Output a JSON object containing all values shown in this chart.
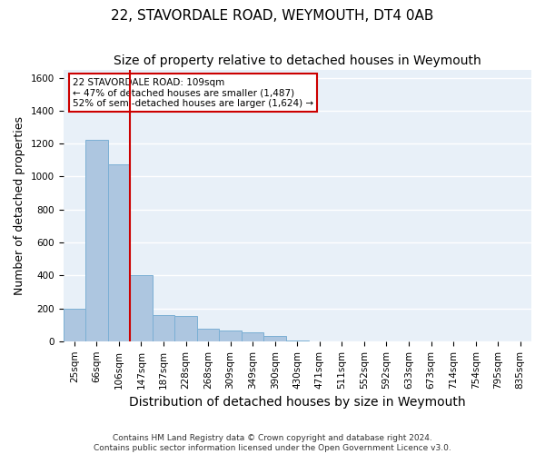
{
  "title": "22, STAVORDALE ROAD, WEYMOUTH, DT4 0AB",
  "subtitle": "Size of property relative to detached houses in Weymouth",
  "xlabel": "Distribution of detached houses by size in Weymouth",
  "ylabel": "Number of detached properties",
  "footnote": "Contains HM Land Registry data © Crown copyright and database right 2024.\nContains public sector information licensed under the Open Government Licence v3.0.",
  "bin_labels": [
    "25sqm",
    "66sqm",
    "106sqm",
    "147sqm",
    "187sqm",
    "228sqm",
    "268sqm",
    "309sqm",
    "349sqm",
    "390sqm",
    "430sqm",
    "471sqm",
    "511sqm",
    "552sqm",
    "592sqm",
    "633sqm",
    "673sqm",
    "714sqm",
    "754sqm",
    "795sqm",
    "835sqm"
  ],
  "bar_heights": [
    200,
    1225,
    1075,
    400,
    160,
    155,
    75,
    65,
    55,
    30,
    5,
    0,
    0,
    0,
    0,
    0,
    0,
    0,
    0,
    0,
    0
  ],
  "bar_color": "#adc6e0",
  "bar_edge_color": "#7bafd4",
  "property_line_x": 2.5,
  "property_size": "109sqm",
  "property_name": "22 STAVORDALE ROAD",
  "pct_smaller": 47,
  "count_smaller": 1487,
  "pct_larger_semi": 52,
  "count_larger_semi": 1624,
  "annotation_box_color": "#cc0000",
  "line_color": "#cc0000",
  "ylim": [
    0,
    1650
  ],
  "yticks": [
    0,
    200,
    400,
    600,
    800,
    1000,
    1200,
    1400,
    1600
  ],
  "bg_color": "#e8f0f8",
  "grid_color": "#ffffff",
  "title_fontsize": 11,
  "subtitle_fontsize": 10,
  "axis_label_fontsize": 9,
  "tick_fontsize": 7.5
}
